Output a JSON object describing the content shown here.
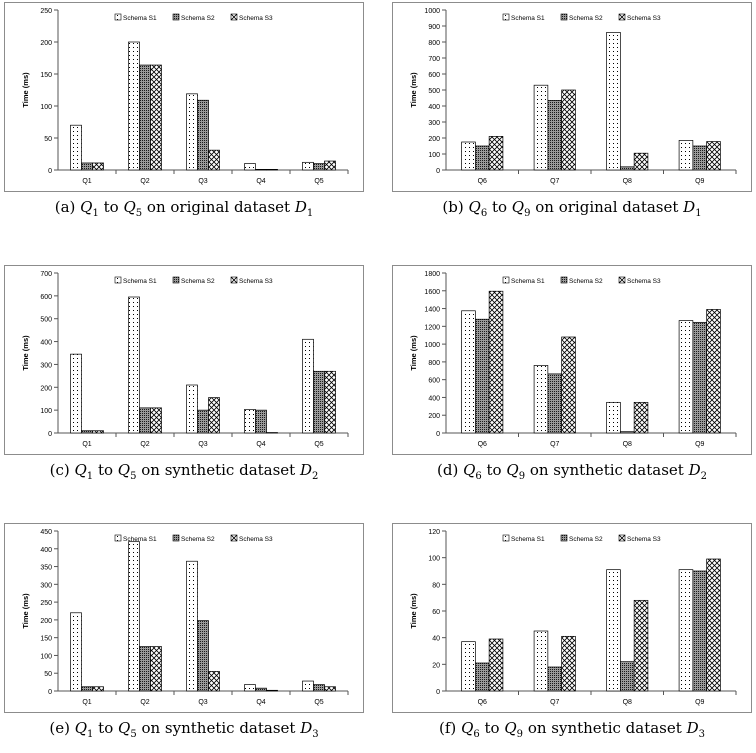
{
  "patterns": {
    "Schema S1": "dots",
    "Schema S2": "dark-dots",
    "Schema S3": "crosshatch"
  },
  "chart_data": [
    {
      "type": "bar",
      "caption": {
        "tag": "(a)",
        "q_from": "1",
        "q_to": "5",
        "text": "on original dataset",
        "dataset_sub": "1"
      },
      "categories": [
        "Q1",
        "Q2",
        "Q3",
        "Q4",
        "Q5"
      ],
      "series": [
        {
          "name": "Schema S1",
          "values": [
            70,
            200,
            119,
            10,
            12
          ]
        },
        {
          "name": "Schema S2",
          "values": [
            11,
            164,
            109,
            1,
            10
          ]
        },
        {
          "name": "Schema S3",
          "values": [
            11,
            164,
            31,
            1,
            14
          ]
        }
      ],
      "ylabel": "Time (ms)",
      "ylim": [
        0,
        250
      ],
      "yticks": [
        "0",
        "50",
        "100",
        "150",
        "200",
        "250"
      ],
      "legend": "top"
    },
    {
      "type": "bar",
      "caption": {
        "tag": "(b)",
        "q_from": "6",
        "q_to": "9",
        "text": "on original dataset",
        "dataset_sub": "1"
      },
      "categories": [
        "Q6",
        "Q7",
        "Q8",
        "Q9"
      ],
      "series": [
        {
          "name": "Schema S1",
          "values": [
            175,
            530,
            860,
            185
          ]
        },
        {
          "name": "Schema S2",
          "values": [
            150,
            435,
            20,
            150
          ]
        },
        {
          "name": "Schema S3",
          "values": [
            210,
            500,
            105,
            178
          ]
        }
      ],
      "ylabel": "Time (ms)",
      "ylim": [
        0,
        1000
      ],
      "yticks": [
        "0",
        "100",
        "200",
        "300",
        "400",
        "500",
        "600",
        "700",
        "800",
        "900",
        "1000"
      ],
      "legend": "top"
    },
    {
      "type": "bar",
      "caption": {
        "tag": "(c)",
        "q_from": "1",
        "q_to": "5",
        "text": "on synthetic dataset",
        "dataset_sub": "2"
      },
      "categories": [
        "Q1",
        "Q2",
        "Q3",
        "Q4",
        "Q5"
      ],
      "series": [
        {
          "name": "Schema S1",
          "values": [
            345,
            595,
            210,
            103,
            410
          ]
        },
        {
          "name": "Schema S2",
          "values": [
            10,
            110,
            100,
            100,
            270
          ]
        },
        {
          "name": "Schema S3",
          "values": [
            10,
            110,
            155,
            2,
            270
          ]
        }
      ],
      "ylabel": "Time (ms)",
      "ylim": [
        0,
        700
      ],
      "yticks": [
        "0",
        "100",
        "200",
        "300",
        "400",
        "500",
        "600",
        "700"
      ],
      "legend": "top"
    },
    {
      "type": "bar",
      "caption": {
        "tag": "(d)",
        "q_from": "6",
        "q_to": "9",
        "text": "on synthetic dataset",
        "dataset_sub": "2"
      },
      "categories": [
        "Q6",
        "Q7",
        "Q8",
        "Q9"
      ],
      "series": [
        {
          "name": "Schema S1",
          "values": [
            1375,
            760,
            345,
            1265
          ]
        },
        {
          "name": "Schema S2",
          "values": [
            1280,
            665,
            15,
            1245
          ]
        },
        {
          "name": "Schema S3",
          "values": [
            1595,
            1080,
            345,
            1390
          ]
        }
      ],
      "ylabel": "Time (ms)",
      "ylim": [
        0,
        1800
      ],
      "yticks": [
        "0",
        "200",
        "400",
        "600",
        "800",
        "1000",
        "1200",
        "1400",
        "1600",
        "1800"
      ],
      "legend": "top"
    },
    {
      "type": "bar",
      "caption": {
        "tag": "(e)",
        "q_from": "1",
        "q_to": "5",
        "text": "on synthetic dataset",
        "dataset_sub": "3"
      },
      "categories": [
        "Q1",
        "Q2",
        "Q3",
        "Q4",
        "Q5"
      ],
      "series": [
        {
          "name": "Schema S1",
          "values": [
            220,
            420,
            365,
            18,
            28
          ]
        },
        {
          "name": "Schema S2",
          "values": [
            12,
            125,
            198,
            8,
            18
          ]
        },
        {
          "name": "Schema S3",
          "values": [
            12,
            125,
            55,
            2,
            12
          ]
        }
      ],
      "ylabel": "Time (ms)",
      "ylim": [
        0,
        450
      ],
      "yticks": [
        "0",
        "50",
        "100",
        "150",
        "200",
        "250",
        "300",
        "350",
        "400",
        "450"
      ],
      "legend": "top"
    },
    {
      "type": "bar",
      "caption": {
        "tag": "(f)",
        "q_from": "6",
        "q_to": "9",
        "text": "on synthetic dataset",
        "dataset_sub": "3"
      },
      "categories": [
        "Q6",
        "Q7",
        "Q8",
        "Q9"
      ],
      "series": [
        {
          "name": "Schema S1",
          "values": [
            37,
            45,
            91,
            91
          ]
        },
        {
          "name": "Schema S2",
          "values": [
            21,
            18,
            22,
            90
          ]
        },
        {
          "name": "Schema S3",
          "values": [
            39,
            41,
            68,
            99
          ]
        }
      ],
      "ylabel": "Time (ms)",
      "ylim": [
        0,
        120
      ],
      "yticks": [
        "0",
        "20",
        "40",
        "60",
        "80",
        "100",
        "120"
      ],
      "legend": "top"
    }
  ]
}
